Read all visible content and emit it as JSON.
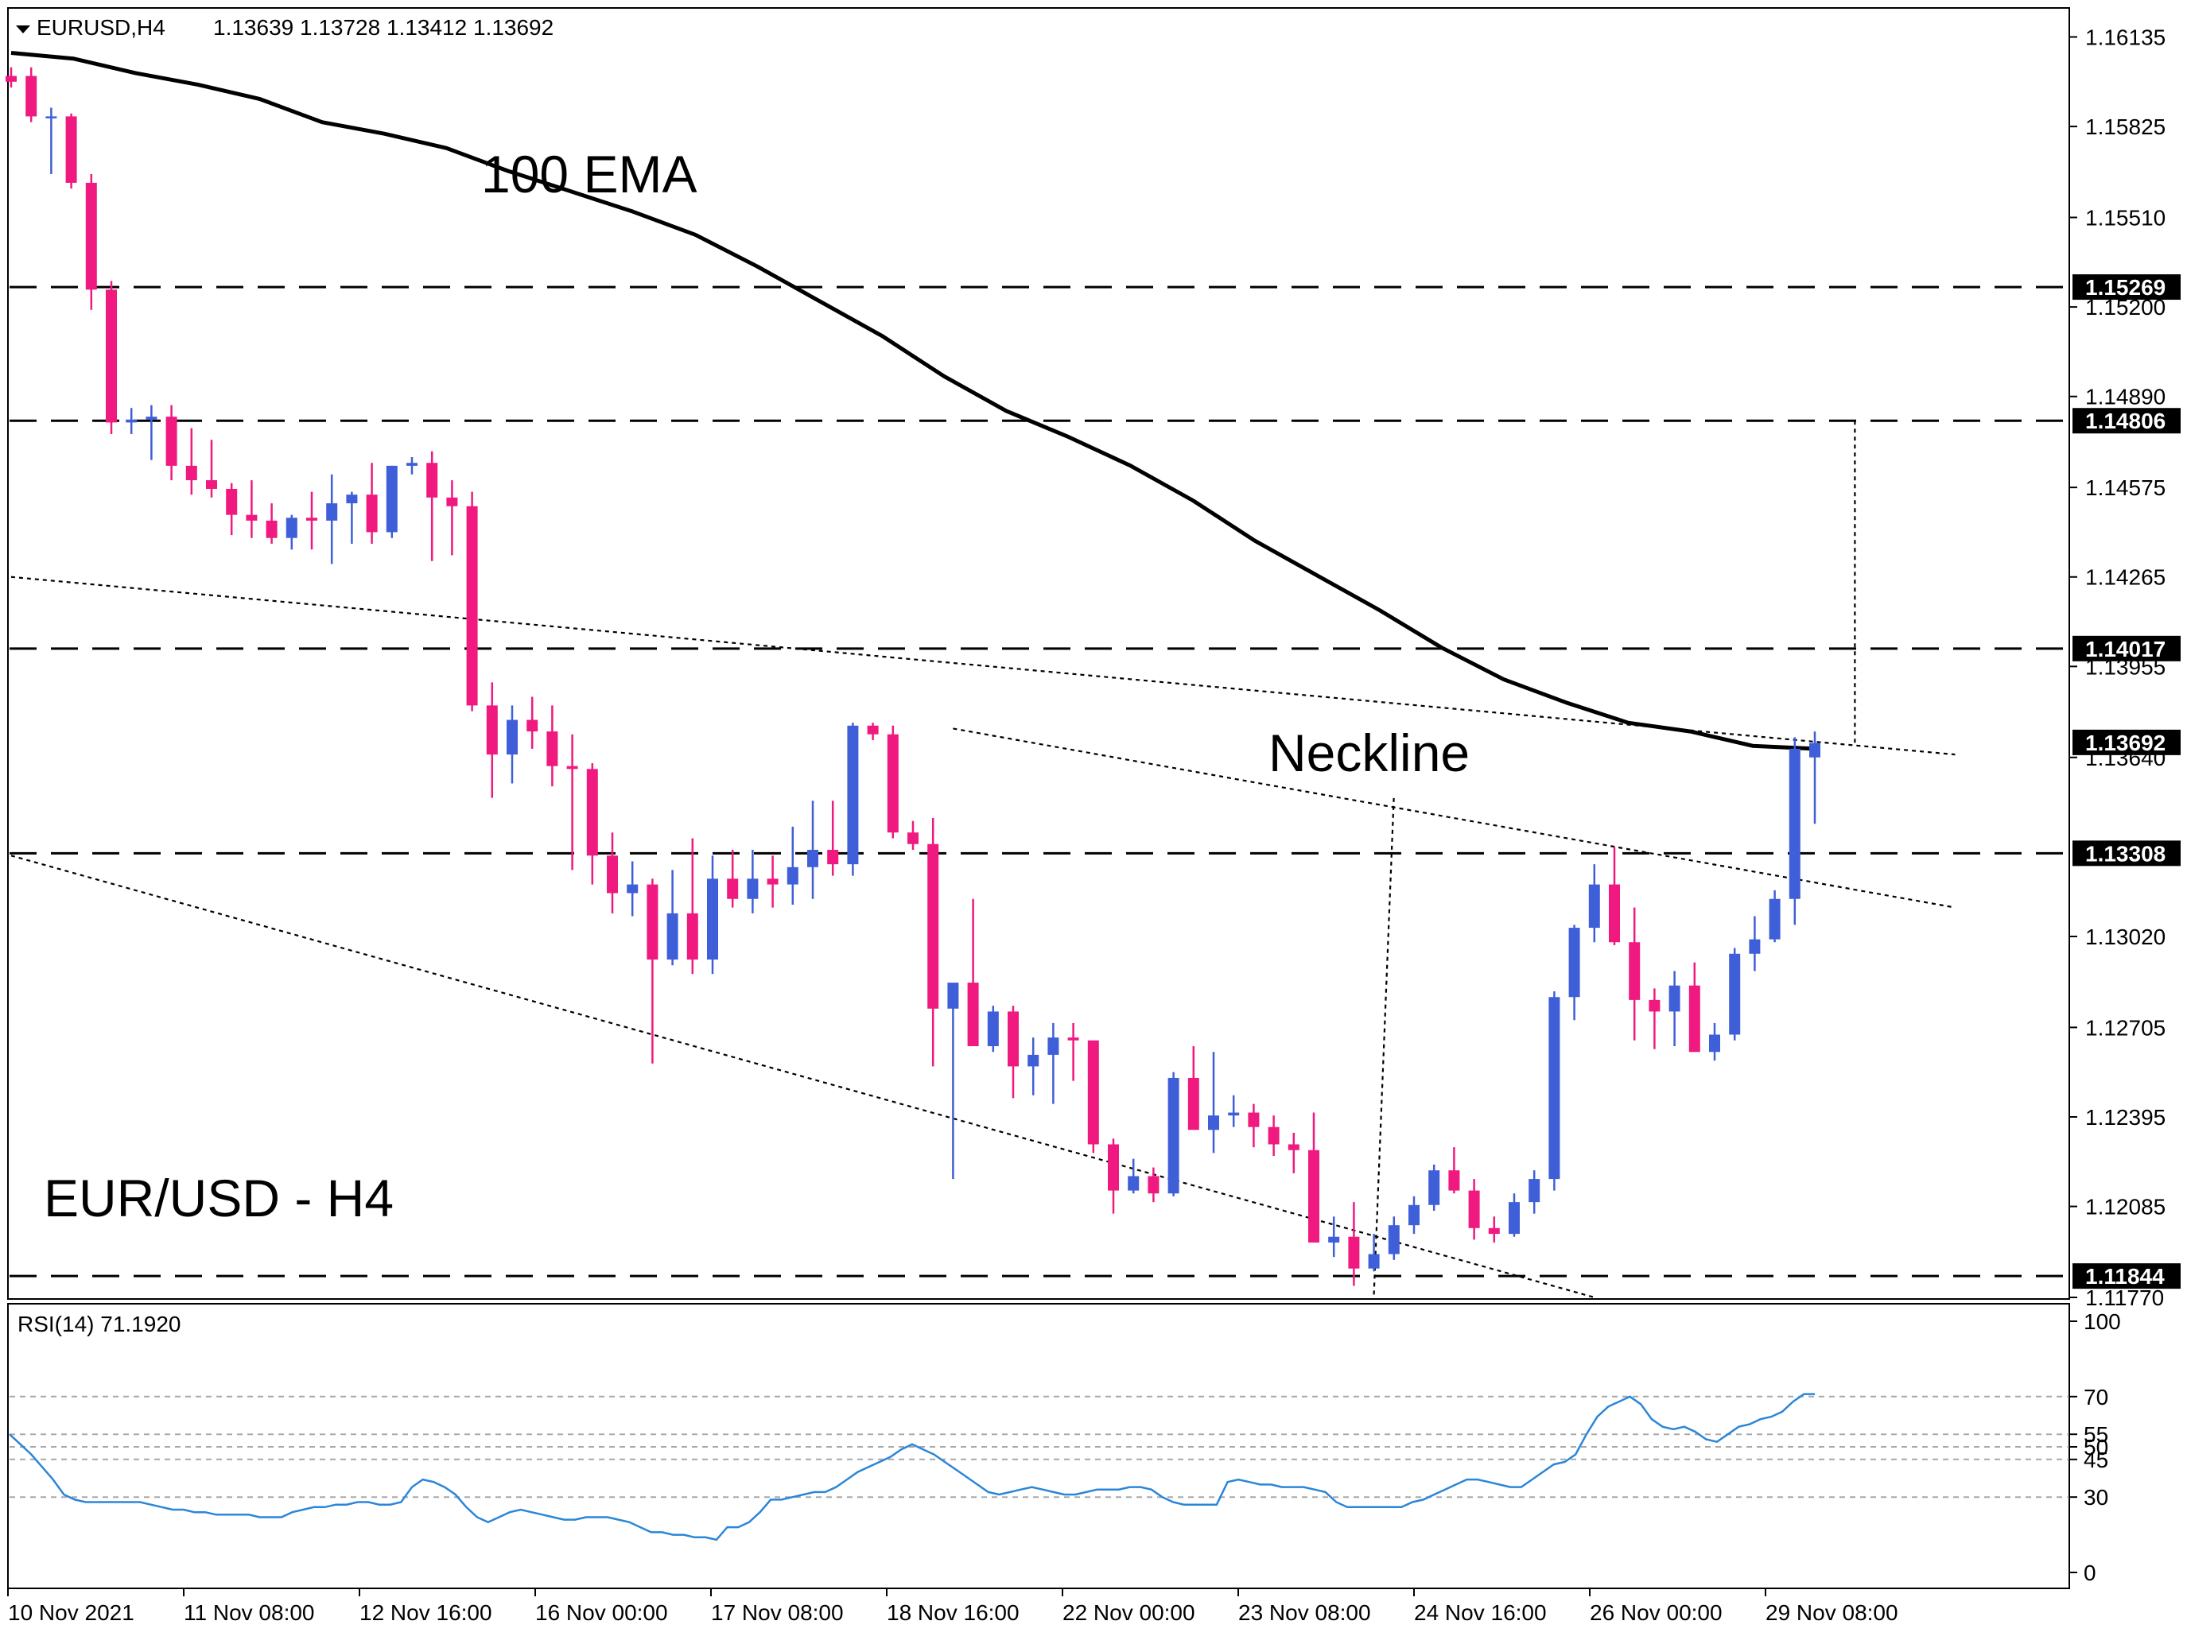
{
  "header": {
    "dropdown_icon": "triangle-down-icon",
    "symbol": "EURUSD,H4",
    "ohlc": "1.13639 1.13728 1.13412 1.13692"
  },
  "annotations": {
    "ema": "100 EMA",
    "neckline": "Neckline",
    "pair": "EUR/USD - H4"
  },
  "rsi": {
    "label": "RSI(14) 71.1920",
    "ticks": [
      "100",
      "70",
      "55",
      "50",
      "45",
      "30",
      "0"
    ],
    "levels": [
      70,
      55,
      50,
      45,
      30
    ],
    "ylim": [
      0,
      100
    ]
  },
  "colors": {
    "bull": "#3f5fd8",
    "bear": "#f0197f",
    "rsi_line": "#2b86d8",
    "ema": "#000000",
    "tag_bg": "#000000"
  },
  "chart_data": {
    "type": "candlestick",
    "ylim": [
      1.1177,
      1.1623
    ],
    "y_ticks": [
      "1.16135",
      "1.15825",
      "1.15510",
      "1.15200",
      "1.14890",
      "1.14575",
      "1.14265",
      "1.13955",
      "1.13640",
      "1.13020",
      "1.12705",
      "1.12395",
      "1.12085",
      "1.11770"
    ],
    "price_tags": [
      "1.15269",
      "1.14806",
      "1.14017",
      "1.13692",
      "1.13308",
      "1.11844"
    ],
    "x_labels": [
      "10 Nov 2021",
      "11 Nov 08:00",
      "12 Nov 16:00",
      "16 Nov 00:00",
      "17 Nov 08:00",
      "18 Nov 16:00",
      "22 Nov 00:00",
      "23 Nov 08:00",
      "24 Nov 16:00",
      "26 Nov 00:00",
      "29 Nov 08:00"
    ],
    "candles": [
      [
        1.16,
        1.1603,
        1.1596,
        1.1598
      ],
      [
        1.16,
        1.1603,
        1.1584,
        1.1586
      ],
      [
        1.1586,
        1.1589,
        1.1566,
        1.1586
      ],
      [
        1.1586,
        1.1587,
        1.1561,
        1.1563
      ],
      [
        1.1563,
        1.1566,
        1.1519,
        1.1526
      ],
      [
        1.1526,
        1.1529,
        1.1476,
        1.148
      ],
      [
        1.148,
        1.1485,
        1.1476,
        1.1481
      ],
      [
        1.1481,
        1.1486,
        1.1467,
        1.1482
      ],
      [
        1.1482,
        1.1486,
        1.146,
        1.1465
      ],
      [
        1.1465,
        1.1478,
        1.1455,
        1.146
      ],
      [
        1.146,
        1.1474,
        1.1454,
        1.1457
      ],
      [
        1.1457,
        1.1459,
        1.1441,
        1.1448
      ],
      [
        1.1448,
        1.146,
        1.144,
        1.1446
      ],
      [
        1.1446,
        1.1452,
        1.1438,
        1.144
      ],
      [
        1.144,
        1.1448,
        1.1436,
        1.1447
      ],
      [
        1.1447,
        1.1456,
        1.1436,
        1.1446
      ],
      [
        1.1446,
        1.1462,
        1.1431,
        1.1452
      ],
      [
        1.1452,
        1.1456,
        1.1438,
        1.1455
      ],
      [
        1.1455,
        1.1466,
        1.1438,
        1.1442
      ],
      [
        1.1442,
        1.1465,
        1.144,
        1.1465
      ],
      [
        1.1465,
        1.1468,
        1.1462,
        1.1466
      ],
      [
        1.1466,
        1.147,
        1.1432,
        1.1454
      ],
      [
        1.1454,
        1.146,
        1.1434,
        1.1451
      ],
      [
        1.1451,
        1.1456,
        1.138,
        1.1382
      ],
      [
        1.1382,
        1.139,
        1.135,
        1.1365
      ],
      [
        1.1365,
        1.1382,
        1.1355,
        1.1377
      ],
      [
        1.1377,
        1.1385,
        1.1367,
        1.1373
      ],
      [
        1.1373,
        1.1382,
        1.1354,
        1.1361
      ],
      [
        1.1361,
        1.1372,
        1.1325,
        1.136
      ],
      [
        1.136,
        1.1362,
        1.132,
        1.133
      ],
      [
        1.133,
        1.1338,
        1.131,
        1.1317
      ],
      [
        1.1317,
        1.1328,
        1.1309,
        1.132
      ],
      [
        1.132,
        1.1322,
        1.1258,
        1.1294
      ],
      [
        1.1294,
        1.1325,
        1.1292,
        1.131
      ],
      [
        1.131,
        1.1336,
        1.1289,
        1.1294
      ],
      [
        1.1294,
        1.133,
        1.1289,
        1.1322
      ],
      [
        1.1322,
        1.1332,
        1.1312,
        1.1315
      ],
      [
        1.1315,
        1.1332,
        1.131,
        1.1322
      ],
      [
        1.1322,
        1.133,
        1.1312,
        1.132
      ],
      [
        1.132,
        1.134,
        1.1313,
        1.1326
      ],
      [
        1.1326,
        1.1349,
        1.1315,
        1.1332
      ],
      [
        1.1332,
        1.1349,
        1.1323,
        1.1327
      ],
      [
        1.1327,
        1.1376,
        1.1323,
        1.1375
      ],
      [
        1.1375,
        1.1376,
        1.137,
        1.1372
      ],
      [
        1.1372,
        1.1375,
        1.1336,
        1.1338
      ],
      [
        1.1338,
        1.1342,
        1.1332,
        1.1334
      ],
      [
        1.1334,
        1.1343,
        1.1257,
        1.1277
      ],
      [
        1.1277,
        1.1283,
        1.1218,
        1.1286
      ],
      [
        1.1286,
        1.1315,
        1.1264,
        1.1264
      ],
      [
        1.1264,
        1.1278,
        1.1262,
        1.1276
      ],
      [
        1.1276,
        1.1278,
        1.1246,
        1.1257
      ],
      [
        1.1257,
        1.1267,
        1.1247,
        1.1261
      ],
      [
        1.1261,
        1.1272,
        1.1244,
        1.1267
      ],
      [
        1.1267,
        1.1272,
        1.1252,
        1.1266
      ],
      [
        1.1266,
        1.1266,
        1.1227,
        1.123
      ],
      [
        1.123,
        1.1232,
        1.1206,
        1.1214
      ],
      [
        1.1214,
        1.1225,
        1.1213,
        1.1219
      ],
      [
        1.1219,
        1.1222,
        1.121,
        1.1213
      ],
      [
        1.1213,
        1.1255,
        1.1212,
        1.1253
      ],
      [
        1.1253,
        1.1264,
        1.1236,
        1.1235
      ],
      [
        1.1235,
        1.1262,
        1.1227,
        1.124
      ],
      [
        1.124,
        1.1247,
        1.1236,
        1.1241
      ],
      [
        1.1241,
        1.1244,
        1.1229,
        1.1236
      ],
      [
        1.1236,
        1.124,
        1.1226,
        1.123
      ],
      [
        1.123,
        1.1234,
        1.122,
        1.1228
      ],
      [
        1.1228,
        1.1241,
        1.1196,
        1.1196
      ],
      [
        1.1196,
        1.1205,
        1.1191,
        1.1198
      ],
      [
        1.1198,
        1.121,
        1.1181,
        1.1187
      ],
      [
        1.1187,
        1.1199,
        1.1186,
        1.1192
      ],
      [
        1.1192,
        1.1205,
        1.119,
        1.1202
      ],
      [
        1.1202,
        1.1212,
        1.1199,
        1.1209
      ],
      [
        1.1209,
        1.1223,
        1.1207,
        1.1221
      ],
      [
        1.1221,
        1.1229,
        1.1213,
        1.1214
      ],
      [
        1.1214,
        1.1218,
        1.1197,
        1.1201
      ],
      [
        1.1201,
        1.1205,
        1.1196,
        1.1199
      ],
      [
        1.1199,
        1.1213,
        1.1198,
        1.121
      ],
      [
        1.121,
        1.1221,
        1.1206,
        1.1218
      ],
      [
        1.1218,
        1.1283,
        1.1214,
        1.1281
      ],
      [
        1.1281,
        1.1306,
        1.1273,
        1.1305
      ],
      [
        1.1305,
        1.1327,
        1.13,
        1.132
      ],
      [
        1.132,
        1.1333,
        1.1299,
        1.13
      ],
      [
        1.13,
        1.1312,
        1.1266,
        1.128
      ],
      [
        1.128,
        1.1284,
        1.1263,
        1.1276
      ],
      [
        1.1276,
        1.129,
        1.1264,
        1.1285
      ],
      [
        1.1285,
        1.1293,
        1.1262,
        1.1262
      ],
      [
        1.1262,
        1.1272,
        1.1259,
        1.1268
      ],
      [
        1.1268,
        1.1298,
        1.1266,
        1.1296
      ],
      [
        1.1296,
        1.1309,
        1.129,
        1.1301
      ],
      [
        1.1301,
        1.1318,
        1.13,
        1.1315
      ],
      [
        1.1315,
        1.1371,
        1.1306,
        1.1367
      ],
      [
        1.1364,
        1.1373,
        1.1341,
        1.1369
      ]
    ],
    "ema100": [
      1.1608,
      1.1606,
      1.1601,
      1.1597,
      1.1592,
      1.1584,
      1.158,
      1.1575,
      1.1567,
      1.156,
      1.1553,
      1.1545,
      1.1534,
      1.1522,
      1.151,
      1.1496,
      1.1484,
      1.1475,
      1.1465,
      1.1453,
      1.1439,
      1.1427,
      1.1415,
      1.1402,
      1.1391,
      1.1383,
      1.1376,
      1.1373,
      1.1368,
      1.1367
    ],
    "rsi14": [
      55,
      51,
      47,
      42,
      37,
      31,
      29,
      28,
      28,
      28,
      28,
      28,
      28,
      27,
      26,
      25,
      25,
      24,
      24,
      23,
      23,
      23,
      23,
      22,
      22,
      22,
      24,
      25,
      26,
      26,
      27,
      27,
      28,
      28,
      27,
      27,
      28,
      34,
      37,
      36,
      34,
      31,
      26,
      22,
      20,
      22,
      24,
      25,
      24,
      23,
      22,
      21,
      21,
      22,
      22,
      22,
      21,
      20,
      18,
      16,
      16,
      15,
      15,
      14,
      14,
      13,
      18,
      18,
      20,
      24,
      29,
      29,
      30,
      31,
      32,
      32,
      34,
      37,
      40,
      42,
      44,
      46,
      49,
      51,
      49,
      47,
      44,
      41,
      38,
      35,
      32,
      31,
      32,
      33,
      34,
      33,
      32,
      31,
      31,
      32,
      33,
      33,
      33,
      34,
      34,
      33,
      30,
      28,
      27,
      27,
      27,
      27,
      36,
      37,
      36,
      35,
      35,
      34,
      34,
      34,
      33,
      32,
      28,
      26,
      26,
      26,
      26,
      26,
      26,
      28,
      29,
      31,
      33,
      35,
      37,
      37,
      36,
      35,
      34,
      34,
      37,
      40,
      43,
      44,
      47,
      55,
      62,
      66,
      68,
      70,
      67,
      61,
      58,
      57,
      58,
      56,
      53,
      52,
      55,
      58,
      59,
      61,
      62,
      64,
      68,
      71,
      71
    ],
    "level_lines": [
      1.15269,
      1.14806,
      1.14017,
      1.13308,
      1.11844
    ],
    "trendlines": [
      {
        "from": [
          0,
          1.14265
        ],
        "to": [
          97,
          1.1365
        ]
      },
      {
        "from": [
          47,
          1.1374
        ],
        "to": [
          97,
          1.1312
        ]
      },
      {
        "from": [
          0,
          1.133
        ],
        "to": [
          79,
          1.1177
        ]
      }
    ],
    "measure_lines": [
      {
        "from": [
          68,
          1.1178
        ],
        "to": [
          69,
          1.1351
        ]
      },
      {
        "from": [
          92,
          1.14806
        ],
        "to": [
          92,
          1.1368
        ]
      }
    ]
  }
}
